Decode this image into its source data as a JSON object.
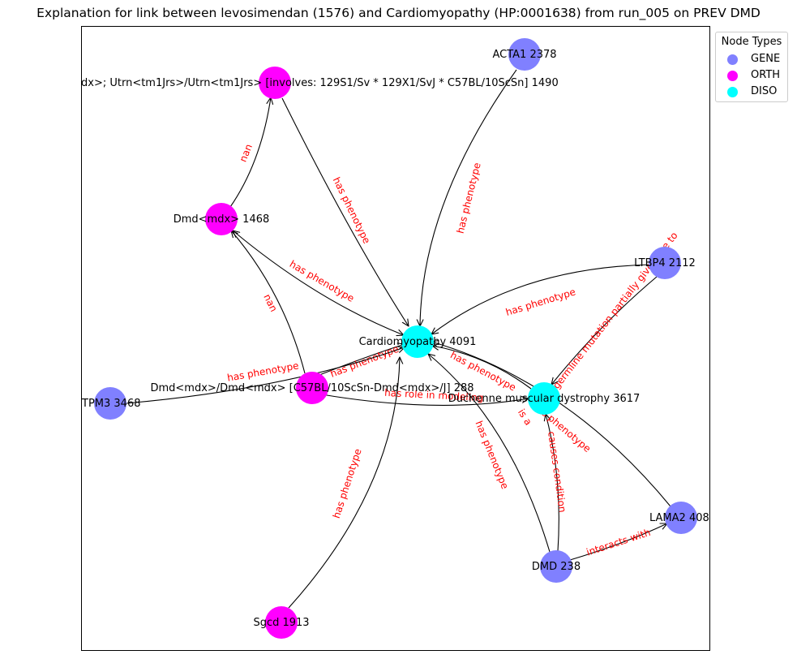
{
  "title": "Explanation for link between levosimendan (1576) and Cardiomyopathy (HP:0001638) from run_005 on PREV DMD",
  "colors": {
    "GENE": "#8080ff",
    "ORTH": "#ff00ff",
    "DISO": "#00ffff",
    "edge": "#000000",
    "edge_label": "#ff0000"
  },
  "legend": {
    "title": "Node Types",
    "items": [
      {
        "type": "GENE",
        "label": "GENE"
      },
      {
        "type": "ORTH",
        "label": "ORTH"
      },
      {
        "type": "DISO",
        "label": "DISO"
      }
    ]
  },
  "nodes": [
    {
      "id": "cardio",
      "label": "Cardiomyopathy 4091",
      "type": "DISO"
    },
    {
      "id": "dmd_disease",
      "label": "Duchenne muscular dystrophy 3617",
      "type": "DISO"
    },
    {
      "id": "acta1",
      "label": "ACTA1 2378",
      "type": "GENE"
    },
    {
      "id": "utrn",
      "label": "dx>; Utrn<tm1Jrs>/Utrn<tm1Jrs> [involves: 129S1/Sv * 129X1/SvJ * C57BL/10ScSn] 1490",
      "type": "ORTH"
    },
    {
      "id": "dmdmdx",
      "label": "Dmd<mdx> 1468",
      "type": "ORTH"
    },
    {
      "id": "ltbp4",
      "label": "LTBP4 2112",
      "type": "GENE"
    },
    {
      "id": "dmdmdx_homo",
      "label": "Dmd<mdx>/Dmd<mdx> [C57BL/10ScSn-Dmd<mdx>/J] 288",
      "type": "ORTH"
    },
    {
      "id": "tpm3",
      "label": "TPM3 3468",
      "type": "GENE"
    },
    {
      "id": "lama2",
      "label": "LAMA2 408",
      "type": "GENE"
    },
    {
      "id": "dmd_gene",
      "label": "DMD 238",
      "type": "GENE"
    },
    {
      "id": "sgcd",
      "label": "Sgcd 1913",
      "type": "ORTH"
    }
  ],
  "edges": [
    {
      "id": "e1",
      "label": "nan"
    },
    {
      "id": "e2",
      "label": "has phenotype"
    },
    {
      "id": "e3",
      "label": "has phenotype"
    },
    {
      "id": "e4",
      "label": "has phenotype"
    },
    {
      "id": "e5",
      "label": "has phenotype"
    },
    {
      "id": "e6",
      "label": "germline mutation partially gives rise to"
    },
    {
      "id": "e7",
      "label": "nan"
    },
    {
      "id": "e8",
      "label": "has phenotype"
    },
    {
      "id": "e9",
      "label": "has phenotype"
    },
    {
      "id": "e10",
      "label": "has role in modeling"
    },
    {
      "id": "e11",
      "label": "has phenotype"
    },
    {
      "id": "e12",
      "label": "has phenotype"
    },
    {
      "id": "e13",
      "label": "has phenotype"
    },
    {
      "id": "e14",
      "label": "causes condition"
    },
    {
      "id": "e15",
      "label": "interacts with"
    },
    {
      "id": "e16",
      "label": "is a"
    },
    {
      "id": "e17",
      "label": "has phenotype"
    }
  ]
}
